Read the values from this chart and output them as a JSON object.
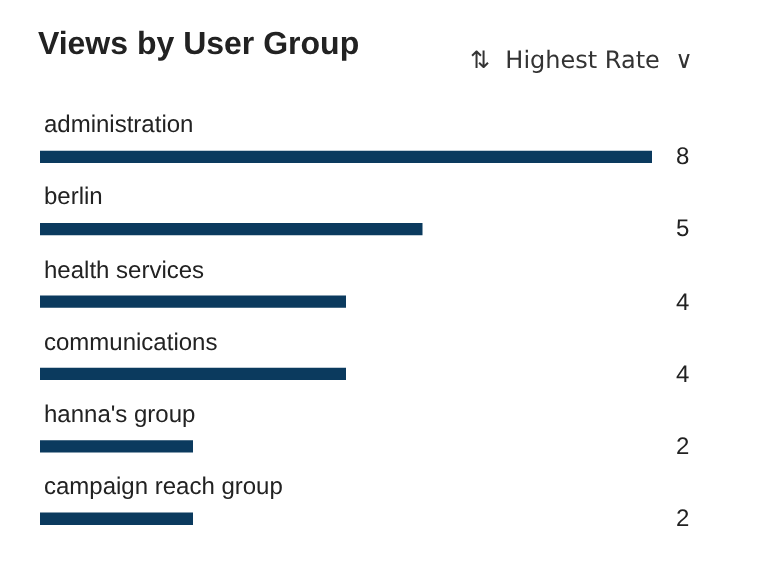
{
  "chart_data": {
    "type": "bar",
    "orientation": "horizontal",
    "title": "Views by User Group",
    "annotations": [
      "⇅  Highest Rate  ∨"
    ],
    "categories": [
      "administration",
      "berlin",
      "health services",
      "communications",
      "hanna's group",
      "campaign reach group"
    ],
    "values": [
      8,
      5,
      4,
      4,
      2,
      2
    ],
    "color": "#0b3a5e",
    "data_labels": true
  }
}
